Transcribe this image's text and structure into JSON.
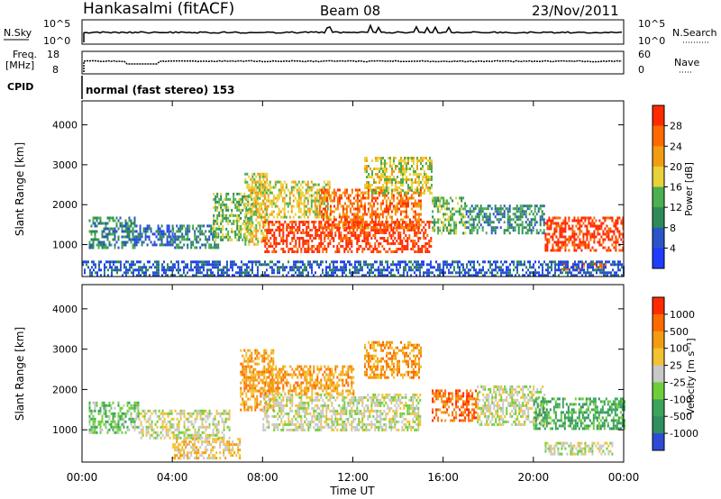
{
  "header": {
    "station": "Hankasalmi (fitACF)",
    "beam": "Beam 08",
    "date": "23/Nov/2011"
  },
  "top_panels": {
    "nsky": {
      "label": "N.Sky",
      "left_top": "10^5",
      "left_bottom": "10^0"
    },
    "nsearch": {
      "label": "N.Search",
      "right_top": "10^5",
      "right_bottom": "10^0"
    },
    "freq": {
      "label_top": "Freq.",
      "label_bottom": "[MHz]",
      "left_top": "18",
      "left_bottom": "8"
    },
    "nave": {
      "label": "Nave",
      "right_top": "60",
      "right_bottom": "0"
    },
    "cpid": {
      "label": "CPID",
      "mode": "normal (fast stereo) 153"
    }
  },
  "chart_data": [
    {
      "type": "heatmap",
      "name": "power-panel",
      "ylabel": "Slant Range [km]",
      "yticks": [
        "1000",
        "2000",
        "3000",
        "4000"
      ],
      "ylim": [
        200,
        4600
      ],
      "xlim": [
        0,
        24
      ],
      "colorbar": {
        "label": "Power [dB]",
        "ticks": [
          "4",
          "8",
          "12",
          "16",
          "20",
          "24",
          "28"
        ],
        "colors": [
          "#1f3cff",
          "#2a55c8",
          "#2e8b57",
          "#4caf50",
          "#e8d23a",
          "#f39c12",
          "#ff6a00",
          "#ff2a00"
        ]
      },
      "regions": [
        {
          "t": [
            0.3,
            2.3
          ],
          "r": [
            900,
            1700
          ],
          "level": 2
        },
        {
          "t": [
            2.3,
            4.0
          ],
          "r": [
            1000,
            1500
          ],
          "level": 1
        },
        {
          "t": [
            4.0,
            6.0
          ],
          "r": [
            950,
            1500
          ],
          "level": 2
        },
        {
          "t": [
            5.8,
            7.5
          ],
          "r": [
            1100,
            2300
          ],
          "level": 3
        },
        {
          "t": [
            7.2,
            8.2
          ],
          "r": [
            1000,
            2800
          ],
          "level": 4
        },
        {
          "t": [
            7.5,
            11.0
          ],
          "r": [
            1700,
            2600
          ],
          "level": 4
        },
        {
          "t": [
            8.0,
            15.5
          ],
          "r": [
            850,
            1600
          ],
          "level": 7
        },
        {
          "t": [
            10.5,
            15.0
          ],
          "r": [
            1400,
            2400
          ],
          "level": 6
        },
        {
          "t": [
            12.5,
            15.5
          ],
          "r": [
            2300,
            3200
          ],
          "level": 4
        },
        {
          "t": [
            15.5,
            17.0
          ],
          "r": [
            1300,
            2200
          ],
          "level": 3
        },
        {
          "t": [
            17.0,
            20.5
          ],
          "r": [
            1300,
            2000
          ],
          "level": 2
        },
        {
          "t": [
            20.5,
            24.0
          ],
          "r": [
            850,
            1700
          ],
          "level": 7
        },
        {
          "t": [
            21.0,
            23.2
          ],
          "r": [
            350,
            550
          ],
          "level": 6
        },
        {
          "t": [
            0.0,
            24.0
          ],
          "r": [
            250,
            600
          ],
          "level": 1
        }
      ]
    },
    {
      "type": "heatmap",
      "name": "velocity-panel",
      "ylabel": "Slant Range [km]",
      "yticks": [
        "1000",
        "2000",
        "3000",
        "4000"
      ],
      "ylim": [
        200,
        4600
      ],
      "xlim": [
        0,
        24
      ],
      "xticks": [
        "00:00",
        "04:00",
        "08:00",
        "12:00",
        "16:00",
        "20:00",
        "00:00"
      ],
      "xlabel": "Time UT",
      "colorbar": {
        "label": "Velocity [m s⁻¹]",
        "ticks": [
          "1000",
          "500",
          "100",
          "25",
          "-25",
          "-100",
          "-500",
          "-1000"
        ],
        "colors": [
          "#2e4bd6",
          "#2f8f5f",
          "#3aa55a",
          "#6fcf3a",
          "#c8c8c8",
          "#f2c232",
          "#f39c12",
          "#ff6a00",
          "#ff2a00"
        ]
      },
      "regions": [
        {
          "t": [
            0.3,
            2.5
          ],
          "r": [
            900,
            1700
          ],
          "level": 3
        },
        {
          "t": [
            2.5,
            6.5
          ],
          "r": [
            800,
            1500
          ],
          "level": 4
        },
        {
          "t": [
            4.0,
            7.0
          ],
          "r": [
            300,
            800
          ],
          "level": 5
        },
        {
          "t": [
            7.0,
            8.5
          ],
          "r": [
            1500,
            3000
          ],
          "level": 6
        },
        {
          "t": [
            8.0,
            15.0
          ],
          "r": [
            1000,
            1900
          ],
          "level": 4
        },
        {
          "t": [
            8.0,
            12.0
          ],
          "r": [
            1900,
            2600
          ],
          "level": 6
        },
        {
          "t": [
            12.5,
            15.0
          ],
          "r": [
            2300,
            3200
          ],
          "level": 6
        },
        {
          "t": [
            15.5,
            17.5
          ],
          "r": [
            1200,
            2000
          ],
          "level": 7
        },
        {
          "t": [
            17.5,
            20.5
          ],
          "r": [
            1100,
            2100
          ],
          "level": 4
        },
        {
          "t": [
            20.0,
            24.0
          ],
          "r": [
            1000,
            1800
          ],
          "level": 2
        },
        {
          "t": [
            20.5,
            23.5
          ],
          "r": [
            400,
            700
          ],
          "level": 4
        }
      ]
    }
  ]
}
